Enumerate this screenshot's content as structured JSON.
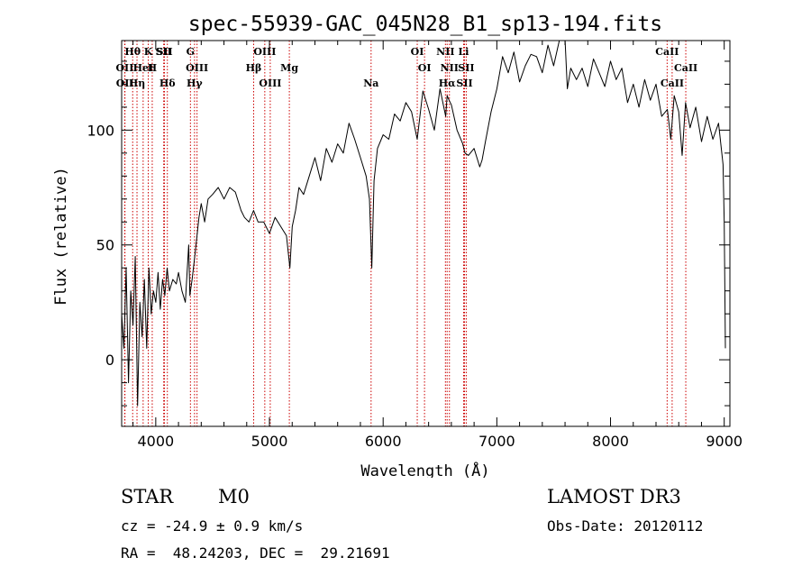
{
  "chart_data": {
    "type": "line",
    "title": "spec-55939-GAC_045N28_B1_sp13-194.fits",
    "xlabel": "Wavelength (Å)",
    "ylabel": "Flux (relative)",
    "xlim": [
      3700,
      9050
    ],
    "ylim": [
      -29,
      139
    ],
    "x_ticks": [
      4000,
      5000,
      6000,
      7000,
      8000,
      9000
    ],
    "x_tick_labels": [
      "4000",
      "5000",
      "6000",
      "7000",
      "8000",
      "9000"
    ],
    "y_ticks": [
      0,
      50,
      100
    ],
    "y_tick_labels": [
      "0",
      "50",
      "100"
    ],
    "series": [
      {
        "name": "spectrum",
        "x": [
          3700,
          3720,
          3740,
          3760,
          3780,
          3800,
          3820,
          3840,
          3860,
          3880,
          3900,
          3920,
          3940,
          3960,
          3980,
          4000,
          4020,
          4040,
          4060,
          4080,
          4100,
          4120,
          4150,
          4180,
          4200,
          4230,
          4260,
          4290,
          4300,
          4320,
          4350,
          4380,
          4400,
          4430,
          4460,
          4500,
          4550,
          4600,
          4650,
          4700,
          4750,
          4780,
          4820,
          4860,
          4900,
          4950,
          5000,
          5050,
          5100,
          5150,
          5180,
          5200,
          5230,
          5260,
          5300,
          5350,
          5400,
          5450,
          5500,
          5550,
          5600,
          5650,
          5700,
          5750,
          5800,
          5850,
          5880,
          5900,
          5920,
          5950,
          6000,
          6050,
          6100,
          6150,
          6200,
          6250,
          6300,
          6350,
          6400,
          6450,
          6500,
          6550,
          6563,
          6580,
          6600,
          6650,
          6700,
          6720,
          6750,
          6800,
          6850,
          6870,
          6900,
          6950,
          7000,
          7050,
          7100,
          7150,
          7200,
          7250,
          7300,
          7350,
          7400,
          7450,
          7500,
          7550,
          7600,
          7620,
          7650,
          7700,
          7750,
          7800,
          7850,
          7900,
          7950,
          8000,
          8050,
          8100,
          8150,
          8200,
          8250,
          8300,
          8350,
          8400,
          8450,
          8500,
          8530,
          8560,
          8600,
          8630,
          8660,
          8700,
          8750,
          8800,
          8850,
          8900,
          8950,
          8990,
          9000,
          9010
        ],
        "y": [
          20,
          5,
          40,
          -10,
          30,
          15,
          45,
          -20,
          25,
          10,
          35,
          5,
          40,
          20,
          30,
          25,
          38,
          22,
          35,
          28,
          40,
          30,
          35,
          33,
          38,
          30,
          25,
          50,
          28,
          35,
          48,
          62,
          68,
          60,
          70,
          72,
          75,
          70,
          75,
          73,
          65,
          62,
          60,
          65,
          60,
          60,
          55,
          62,
          58,
          54,
          40,
          58,
          65,
          75,
          72,
          80,
          88,
          78,
          92,
          86,
          94,
          90,
          103,
          96,
          88,
          80,
          70,
          40,
          78,
          92,
          98,
          96,
          107,
          104,
          112,
          108,
          96,
          117,
          109,
          100,
          118,
          106,
          115,
          113,
          111,
          100,
          94,
          90,
          89,
          92,
          84,
          87,
          95,
          108,
          118,
          132,
          125,
          134,
          121,
          128,
          133,
          132,
          125,
          137,
          128,
          142,
          148,
          118,
          127,
          122,
          127,
          119,
          131,
          125,
          119,
          130,
          122,
          127,
          112,
          120,
          110,
          122,
          113,
          120,
          106,
          109,
          96,
          115,
          108,
          89,
          112,
          101,
          110,
          95,
          106,
          96,
          103,
          85,
          60,
          5
        ]
      }
    ],
    "line_markers": [
      {
        "label": "Hθ",
        "wavelength": 3797
      },
      {
        "label": "OII",
        "wavelength": 3727
      },
      {
        "label": "OII",
        "wavelength": 3729
      },
      {
        "label": "K",
        "wavelength": 3934
      },
      {
        "label": "HeI",
        "wavelength": 3889
      },
      {
        "label": "Hη",
        "wavelength": 3835
      },
      {
        "label": "SII",
        "wavelength": 4070
      },
      {
        "label": "H",
        "wavelength": 3969
      },
      {
        "label": "Hδ",
        "wavelength": 4102
      },
      {
        "label": "SII",
        "wavelength": 4077
      },
      {
        "label": "OIII",
        "wavelength": 4363
      },
      {
        "label": "Hγ",
        "wavelength": 4341
      },
      {
        "label": "G",
        "wavelength": 4305
      },
      {
        "label": "Hβ",
        "wavelength": 4861
      },
      {
        "label": "OIII",
        "wavelength": 5007
      },
      {
        "label": "OIII",
        "wavelength": 4959
      },
      {
        "label": "Mg",
        "wavelength": 5175
      },
      {
        "label": "Na",
        "wavelength": 5894
      },
      {
        "label": "OI",
        "wavelength": 6300
      },
      {
        "label": "OI",
        "wavelength": 6364
      },
      {
        "label": "Hα",
        "wavelength": 6563
      },
      {
        "label": "NII",
        "wavelength": 6548
      },
      {
        "label": "NII",
        "wavelength": 6583
      },
      {
        "label": "SII",
        "wavelength": 6716
      },
      {
        "label": "Li",
        "wavelength": 6708
      },
      {
        "label": "SII",
        "wavelength": 6731
      },
      {
        "label": "CaII",
        "wavelength": 8542
      },
      {
        "label": "CaII",
        "wavelength": 8498
      },
      {
        "label": "CaII",
        "wavelength": 8662
      }
    ]
  },
  "info": {
    "object_class": "STAR",
    "subclass": "M0",
    "survey": "LAMOST DR3",
    "cz": "cz = -24.9 ± 0.9 km/s",
    "obs_date": "Obs-Date: 20120112",
    "coords": "RA =  48.24203, DEC =  29.21691"
  },
  "colors": {
    "spectrum": "#000000",
    "marker": "#cc0000",
    "axes": "#000000"
  }
}
